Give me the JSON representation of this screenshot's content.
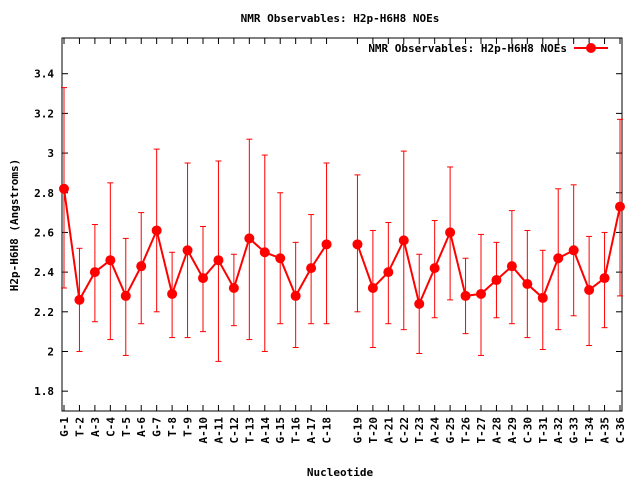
{
  "chart_data": {
    "type": "line",
    "title": "NMR Observables: H2p-H6H8 NOEs",
    "xlabel": "Nucleotide",
    "ylabel": "H2p-H6H8 (Angstroms)",
    "ylim": [
      1.7,
      3.58
    ],
    "yticks": [
      "1.8",
      "2",
      "2.2",
      "2.4",
      "2.6",
      "2.8",
      "3",
      "3.2",
      "3.4"
    ],
    "grid": false,
    "legend_position": "top-right",
    "color": "#ff0000",
    "categories": [
      "G-1",
      "T-2",
      "A-3",
      "C-4",
      "T-5",
      "A-6",
      "G-7",
      "T-8",
      "T-9",
      "A-10",
      "A-11",
      "C-12",
      "T-13",
      "A-14",
      "G-15",
      "T-16",
      "A-17",
      "C-18",
      "G-19",
      "T-20",
      "A-21",
      "C-22",
      "T-23",
      "A-24",
      "G-25",
      "T-26",
      "T-27",
      "A-28",
      "A-29",
      "C-30",
      "T-31",
      "A-32",
      "G-33",
      "T-34",
      "A-35",
      "C-36"
    ],
    "x": [
      1,
      2,
      3,
      4,
      5,
      6,
      7,
      8,
      9,
      10,
      11,
      12,
      13,
      14,
      15,
      16,
      17,
      18,
      20,
      21,
      22,
      23,
      24,
      25,
      26,
      27,
      28,
      29,
      30,
      31,
      32,
      33,
      34,
      35,
      36,
      37
    ],
    "series": [
      {
        "name": "NMR Observables: H2p-H6H8 NOEs",
        "segments": [
          [
            0,
            17
          ],
          [
            18,
            35
          ]
        ],
        "values": [
          2.82,
          2.26,
          2.4,
          2.46,
          2.28,
          2.43,
          2.61,
          2.29,
          2.51,
          2.37,
          2.46,
          2.32,
          2.57,
          2.5,
          2.47,
          2.28,
          2.42,
          2.54,
          2.54,
          2.32,
          2.4,
          2.56,
          2.24,
          2.42,
          2.6,
          2.28,
          2.29,
          2.36,
          2.43,
          2.34,
          2.27,
          2.47,
          2.51,
          2.31,
          2.37,
          2.73
        ],
        "err_low": [
          2.32,
          2.0,
          2.15,
          2.06,
          1.98,
          2.14,
          2.2,
          2.07,
          2.07,
          2.1,
          1.95,
          2.13,
          2.06,
          2.0,
          2.14,
          2.02,
          2.14,
          2.14,
          2.2,
          2.02,
          2.14,
          2.11,
          1.99,
          2.17,
          2.26,
          2.09,
          1.98,
          2.17,
          2.14,
          2.07,
          2.01,
          2.11,
          2.18,
          2.03,
          2.12,
          2.28
        ],
        "err_high": [
          3.33,
          2.52,
          2.64,
          2.85,
          2.57,
          2.7,
          3.02,
          2.5,
          2.95,
          2.63,
          2.96,
          2.49,
          3.07,
          2.99,
          2.8,
          2.55,
          2.69,
          2.95,
          2.89,
          2.61,
          2.65,
          3.01,
          2.49,
          2.66,
          2.93,
          2.47,
          2.59,
          2.55,
          2.71,
          2.61,
          2.51,
          2.82,
          2.84,
          2.58,
          2.6,
          3.17
        ]
      }
    ]
  }
}
